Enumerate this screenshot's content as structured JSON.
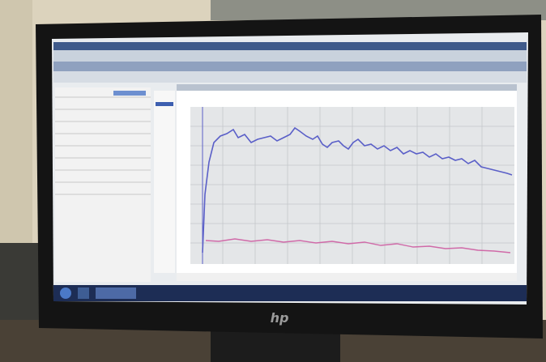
{
  "logo": "hp"
}
